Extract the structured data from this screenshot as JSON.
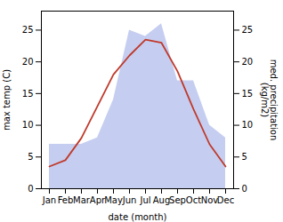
{
  "chart_data": {
    "type": "line",
    "xlabel": "date (month)",
    "ylabel": "max temp (C)",
    "y2label": "med. precipitation\n(kg/m2)",
    "categories": [
      "Jan",
      "Feb",
      "Mar",
      "Apr",
      "May",
      "Jun",
      "Jul",
      "Aug",
      "Sep",
      "Oct",
      "Nov",
      "Dec"
    ],
    "series": [
      {
        "type": "area",
        "axis": "y2",
        "color": "#c5cef0",
        "values": [
          7.0,
          7.0,
          7.0,
          8.0,
          14.0,
          25.0,
          24.0,
          26.0,
          17.0,
          17.0,
          10.0,
          8.0
        ]
      },
      {
        "type": "line",
        "color": "#c0392b",
        "values": [
          3.5,
          4.5,
          8.0,
          13.0,
          18.0,
          21.0,
          23.5,
          23.0,
          18.5,
          12.5,
          7.0,
          3.5
        ]
      }
    ],
    "ylim": [
      0,
      28
    ],
    "yticks": [
      0,
      5,
      10,
      15,
      20,
      25
    ],
    "y2lim": [
      0,
      28
    ],
    "y2ticks": [
      0,
      5,
      10,
      15,
      20,
      25
    ],
    "grid": false
  }
}
